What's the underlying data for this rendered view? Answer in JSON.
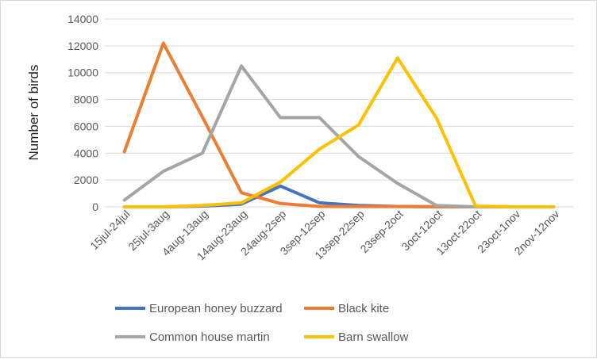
{
  "chart_data": {
    "type": "line",
    "title": "",
    "xlabel": "",
    "ylabel": "Number of birds",
    "ylim": [
      0,
      14000
    ],
    "yticks": [
      0,
      2000,
      4000,
      6000,
      8000,
      10000,
      12000,
      14000
    ],
    "grid": true,
    "legend_position": "bottom",
    "categories": [
      "15jul-24jul",
      "25jul-3aug",
      "4aug-13aug",
      "14aug-23aug",
      "24aug-2sep",
      "3sep-12sep",
      "13sep-22sep",
      "23sep-2oct",
      "3oct-12oct",
      "13oct-22oct",
      "23oct-1nov",
      "2nov-12nov"
    ],
    "series": [
      {
        "name": "European honey buzzard",
        "color": "#4472c4",
        "values": [
          0,
          0,
          50,
          200,
          1550,
          300,
          100,
          30,
          10,
          0,
          0,
          0
        ]
      },
      {
        "name": "Black kite",
        "color": "#ed7d31",
        "values": [
          4100,
          12200,
          6700,
          1050,
          250,
          30,
          20,
          20,
          10,
          0,
          0,
          0
        ]
      },
      {
        "name": "Common house martin",
        "color": "#a5a5a5",
        "values": [
          500,
          2650,
          4000,
          10500,
          6650,
          6650,
          3750,
          1750,
          100,
          0,
          0,
          0
        ]
      },
      {
        "name": "Barn swallow",
        "color": "#ffc000",
        "values": [
          0,
          0,
          100,
          300,
          1850,
          4300,
          6100,
          11100,
          6600,
          50,
          0,
          0
        ]
      }
    ]
  }
}
